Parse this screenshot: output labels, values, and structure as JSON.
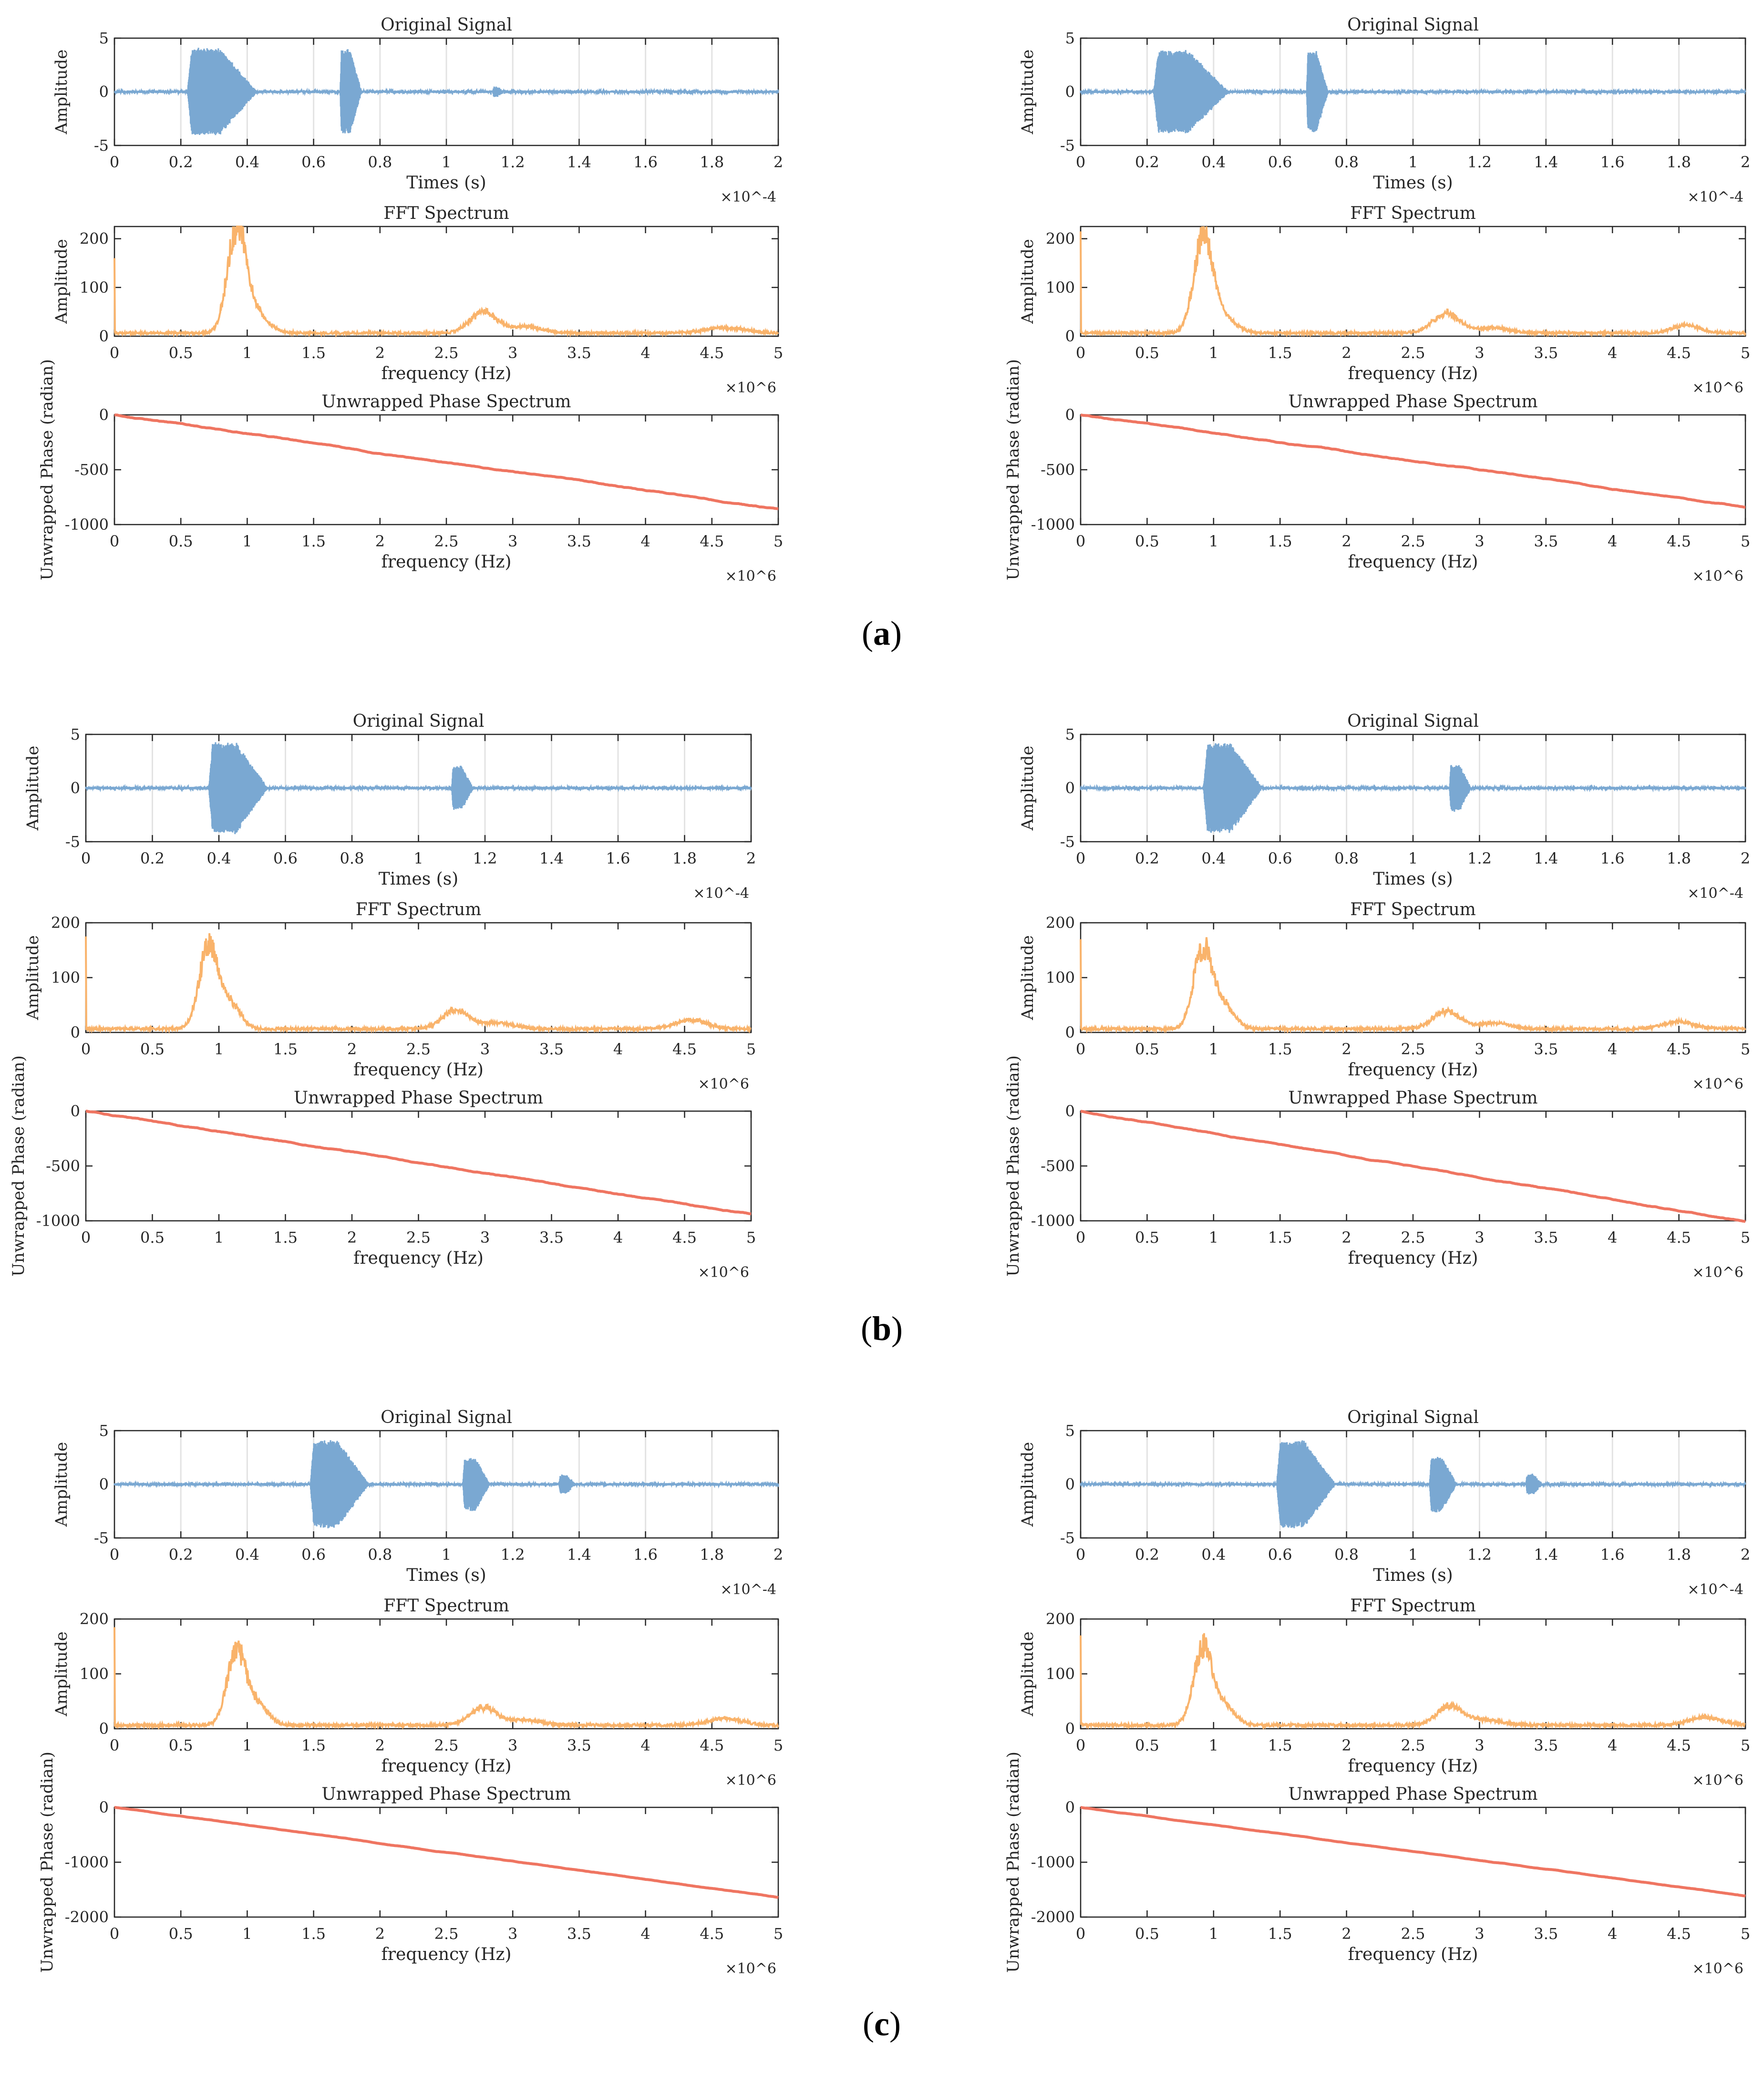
{
  "colors": {
    "signal": "#7aa8d2",
    "fft": "#f9b36b",
    "phase": "#ef7561",
    "axis": "#262626",
    "grid": "#e3e3e3"
  },
  "chart_data": [
    {
      "group": "a",
      "caption": "(a)",
      "column": "left",
      "signal": {
        "type": "line",
        "title": "Original Signal",
        "xlabel": "Times (s)",
        "ylabel": "Amplitude",
        "xlim": [
          0,
          2
        ],
        "ylim": [
          -5,
          5
        ],
        "x_ticks": [
          "0",
          "0.2",
          "0.4",
          "0.6",
          "0.8",
          "1",
          "1.2",
          "1.4",
          "1.6",
          "1.8",
          "2"
        ],
        "y_ticks": [
          "-5",
          "0",
          "5"
        ],
        "x_exponent": "×10^-4",
        "bursts": [
          {
            "t": 0.22,
            "dur": 0.13,
            "amp": 4.0
          },
          {
            "t": 0.68,
            "dur": 0.04,
            "amp": 3.9
          },
          {
            "t": 1.14,
            "dur": 0.02,
            "amp": 0.4
          }
        ],
        "grid": true
      },
      "fft": {
        "type": "line",
        "title": "FFT Spectrum",
        "xlabel": "frequency (Hz)",
        "ylabel": "Amplitude",
        "xlim": [
          0,
          5
        ],
        "ylim": [
          0,
          225
        ],
        "x_ticks": [
          "0",
          "0.5",
          "1",
          "1.5",
          "2",
          "2.5",
          "3",
          "3.5",
          "4",
          "4.5",
          "5"
        ],
        "y_ticks": [
          "0",
          "100",
          "200"
        ],
        "x_exponent": "×10^6",
        "peaks": [
          {
            "f": 0.92,
            "a": 225,
            "w": 0.07
          },
          {
            "f": 1.05,
            "a": 45,
            "w": 0.1
          },
          {
            "f": 2.78,
            "a": 48,
            "w": 0.1
          },
          {
            "f": 3.1,
            "a": 15,
            "w": 0.12
          },
          {
            "f": 4.6,
            "a": 12,
            "w": 0.15
          }
        ],
        "start": 160
      },
      "phase": {
        "type": "line",
        "title": "Unwrapped Phase Spectrum",
        "xlabel": "frequency (Hz)",
        "ylabel": "Unwrapped Phase (radian)",
        "xlim": [
          0,
          5
        ],
        "ylim": [
          -1000,
          0
        ],
        "x_ticks": [
          "0",
          "0.5",
          "1",
          "1.5",
          "2",
          "2.5",
          "3",
          "3.5",
          "4",
          "4.5",
          "5"
        ],
        "y_ticks": [
          "-1000",
          "-500",
          "0"
        ],
        "x_exponent": "×10^6",
        "end": -860
      }
    },
    {
      "group": "a",
      "caption": "(a)",
      "column": "right",
      "signal": {
        "type": "line",
        "title": "Original Signal",
        "xlabel": "Times (s)",
        "ylabel": "Amplitude",
        "xlim": [
          0,
          2
        ],
        "ylim": [
          -5,
          5
        ],
        "x_ticks": [
          "0",
          "0.2",
          "0.4",
          "0.6",
          "0.8",
          "1",
          "1.2",
          "1.4",
          "1.6",
          "1.8",
          "2"
        ],
        "y_ticks": [
          "-5",
          "0",
          "5"
        ],
        "x_exponent": "×10^-4",
        "bursts": [
          {
            "t": 0.22,
            "dur": 0.14,
            "amp": 3.8
          },
          {
            "t": 0.68,
            "dur": 0.04,
            "amp": 3.7
          }
        ],
        "grid": true
      },
      "fft": {
        "type": "line",
        "title": "FFT Spectrum",
        "xlabel": "frequency (Hz)",
        "ylabel": "Amplitude",
        "xlim": [
          0,
          5
        ],
        "ylim": [
          0,
          225
        ],
        "x_ticks": [
          "0",
          "0.5",
          "1",
          "1.5",
          "2",
          "2.5",
          "3",
          "3.5",
          "4",
          "4.5",
          "5"
        ],
        "y_ticks": [
          "0",
          "100",
          "200"
        ],
        "x_exponent": "×10^6",
        "peaks": [
          {
            "f": 0.92,
            "a": 210,
            "w": 0.07
          },
          {
            "f": 1.05,
            "a": 40,
            "w": 0.1
          },
          {
            "f": 2.75,
            "a": 45,
            "w": 0.1
          },
          {
            "f": 3.1,
            "a": 12,
            "w": 0.12
          },
          {
            "f": 4.55,
            "a": 18,
            "w": 0.1
          }
        ],
        "start": 215
      },
      "phase": {
        "type": "line",
        "title": "Unwrapped Phase Spectrum",
        "xlabel": "frequency (Hz)",
        "ylabel": "Unwrapped Phase (radian)",
        "xlim": [
          0,
          5
        ],
        "ylim": [
          -1000,
          0
        ],
        "x_ticks": [
          "0",
          "0.5",
          "1",
          "1.5",
          "2",
          "2.5",
          "3",
          "3.5",
          "4",
          "4.5",
          "5"
        ],
        "y_ticks": [
          "-1000",
          "-500",
          "0"
        ],
        "x_exponent": "×10^6",
        "end": -840
      }
    },
    {
      "group": "b",
      "caption": "(b)",
      "column": "left",
      "signal": {
        "type": "line",
        "title": "Original Signal",
        "xlabel": "Times (s)",
        "ylabel": "Amplitude",
        "xlim": [
          0,
          2
        ],
        "ylim": [
          -5,
          5
        ],
        "x_ticks": [
          "0",
          "0.2",
          "0.4",
          "0.6",
          "0.8",
          "1",
          "1.2",
          "1.4",
          "1.6",
          "1.8",
          "2"
        ],
        "y_ticks": [
          "-5",
          "0",
          "5"
        ],
        "x_exponent": "×10^-4",
        "bursts": [
          {
            "t": 0.37,
            "dur": 0.11,
            "amp": 4.2
          },
          {
            "t": 1.1,
            "dur": 0.04,
            "amp": 2.0
          }
        ],
        "grid": true
      },
      "fft": {
        "type": "line",
        "title": "FFT Spectrum",
        "xlabel": "frequency (Hz)",
        "ylabel": "Amplitude",
        "xlim": [
          0,
          5
        ],
        "ylim": [
          0,
          200
        ],
        "x_ticks": [
          "0",
          "0.5",
          "1",
          "1.5",
          "2",
          "2.5",
          "3",
          "3.5",
          "4",
          "4.5",
          "5"
        ],
        "y_ticks": [
          "0",
          "100",
          "200"
        ],
        "x_exponent": "×10^6",
        "peaks": [
          {
            "f": 0.92,
            "a": 162,
            "w": 0.07
          },
          {
            "f": 1.08,
            "a": 50,
            "w": 0.08
          },
          {
            "f": 2.78,
            "a": 38,
            "w": 0.1
          },
          {
            "f": 3.1,
            "a": 12,
            "w": 0.12
          },
          {
            "f": 4.55,
            "a": 18,
            "w": 0.12
          }
        ],
        "start": 175
      },
      "phase": {
        "type": "line",
        "title": "Unwrapped Phase Spectrum",
        "xlabel": "frequency (Hz)",
        "ylabel": "Unwrapped Phase (radian)",
        "xlim": [
          0,
          5
        ],
        "ylim": [
          -1000,
          0
        ],
        "x_ticks": [
          "0",
          "0.5",
          "1",
          "1.5",
          "2",
          "2.5",
          "3",
          "3.5",
          "4",
          "4.5",
          "5"
        ],
        "y_ticks": [
          "-1000",
          "-500",
          "0"
        ],
        "x_exponent": "×10^6",
        "end": -940
      }
    },
    {
      "group": "b",
      "caption": "(b)",
      "column": "right",
      "signal": {
        "type": "line",
        "title": "Original Signal",
        "xlabel": "Times (s)",
        "ylabel": "Amplitude",
        "xlim": [
          0,
          2
        ],
        "ylim": [
          -5,
          5
        ],
        "x_ticks": [
          "0",
          "0.2",
          "0.4",
          "0.6",
          "0.8",
          "1",
          "1.2",
          "1.4",
          "1.6",
          "1.8",
          "2"
        ],
        "y_ticks": [
          "-5",
          "0",
          "5"
        ],
        "x_exponent": "×10^-4",
        "bursts": [
          {
            "t": 0.37,
            "dur": 0.11,
            "amp": 4.1
          },
          {
            "t": 1.11,
            "dur": 0.04,
            "amp": 2.1
          }
        ],
        "grid": true
      },
      "fft": {
        "type": "line",
        "title": "FFT Spectrum",
        "xlabel": "frequency (Hz)",
        "ylabel": "Amplitude",
        "xlim": [
          0,
          5
        ],
        "ylim": [
          0,
          200
        ],
        "x_ticks": [
          "0",
          "0.5",
          "1",
          "1.5",
          "2",
          "2.5",
          "3",
          "3.5",
          "4",
          "4.5",
          "5"
        ],
        "y_ticks": [
          "0",
          "100",
          "200"
        ],
        "x_exponent": "×10^6",
        "peaks": [
          {
            "f": 0.92,
            "a": 162,
            "w": 0.07
          },
          {
            "f": 1.08,
            "a": 45,
            "w": 0.08
          },
          {
            "f": 2.75,
            "a": 36,
            "w": 0.1
          },
          {
            "f": 3.1,
            "a": 12,
            "w": 0.12
          },
          {
            "f": 4.5,
            "a": 14,
            "w": 0.12
          }
        ],
        "start": 170
      },
      "phase": {
        "type": "line",
        "title": "Unwrapped Phase Spectrum",
        "xlabel": "frequency (Hz)",
        "ylabel": "Unwrapped Phase (radian)",
        "xlim": [
          0,
          5
        ],
        "ylim": [
          -1000,
          0
        ],
        "x_ticks": [
          "0",
          "0.5",
          "1",
          "1.5",
          "2",
          "2.5",
          "3",
          "3.5",
          "4",
          "4.5",
          "5"
        ],
        "y_ticks": [
          "-1000",
          "-500",
          "0"
        ],
        "x_exponent": "×10^6",
        "end": -1010
      }
    },
    {
      "group": "c",
      "caption": "(c)",
      "column": "left",
      "signal": {
        "type": "line",
        "title": "Original Signal",
        "xlabel": "Times (s)",
        "ylabel": "Amplitude",
        "xlim": [
          0,
          2
        ],
        "ylim": [
          -5,
          5
        ],
        "x_ticks": [
          "0",
          "0.2",
          "0.4",
          "0.6",
          "0.8",
          "1",
          "1.2",
          "1.4",
          "1.6",
          "1.8",
          "2"
        ],
        "y_ticks": [
          "-5",
          "0",
          "5"
        ],
        "x_exponent": "×10^-4",
        "bursts": [
          {
            "t": 0.59,
            "dur": 0.11,
            "amp": 4.0
          },
          {
            "t": 1.05,
            "dur": 0.05,
            "amp": 2.4
          },
          {
            "t": 1.34,
            "dur": 0.03,
            "amp": 0.8
          }
        ],
        "grid": true
      },
      "fft": {
        "type": "line",
        "title": "FFT Spectrum",
        "xlabel": "frequency (Hz)",
        "ylabel": "Amplitude",
        "xlim": [
          0,
          5
        ],
        "ylim": [
          0,
          200
        ],
        "x_ticks": [
          "0",
          "0.5",
          "1",
          "1.5",
          "2",
          "2.5",
          "3",
          "3.5",
          "4",
          "4.5",
          "5"
        ],
        "y_ticks": [
          "0",
          "100",
          "200"
        ],
        "x_exponent": "×10^6",
        "peaks": [
          {
            "f": 0.92,
            "a": 150,
            "w": 0.07
          },
          {
            "f": 1.08,
            "a": 40,
            "w": 0.08
          },
          {
            "f": 2.78,
            "a": 36,
            "w": 0.1
          },
          {
            "f": 3.1,
            "a": 10,
            "w": 0.12
          },
          {
            "f": 4.6,
            "a": 14,
            "w": 0.12
          }
        ],
        "start": 185
      },
      "phase": {
        "type": "line",
        "title": "Unwrapped Phase Spectrum",
        "xlabel": "frequency (Hz)",
        "ylabel": "Unwrapped Phase (radian)",
        "xlim": [
          0,
          5
        ],
        "ylim": [
          -2000,
          0
        ],
        "x_ticks": [
          "0",
          "0.5",
          "1",
          "1.5",
          "2",
          "2.5",
          "3",
          "3.5",
          "4",
          "4.5",
          "5"
        ],
        "y_ticks": [
          "-2000",
          "-1000",
          "0"
        ],
        "x_exponent": "×10^6",
        "end": -1640
      }
    },
    {
      "group": "c",
      "caption": "(c)",
      "column": "right",
      "signal": {
        "type": "line",
        "title": "Original Signal",
        "xlabel": "Times (s)",
        "ylabel": "Amplitude",
        "xlim": [
          0,
          2
        ],
        "ylim": [
          -5,
          5
        ],
        "x_ticks": [
          "0",
          "0.2",
          "0.4",
          "0.6",
          "0.8",
          "1",
          "1.2",
          "1.4",
          "1.6",
          "1.8",
          "2"
        ],
        "y_ticks": [
          "-5",
          "0",
          "5"
        ],
        "x_exponent": "×10^-4",
        "bursts": [
          {
            "t": 0.59,
            "dur": 0.11,
            "amp": 4.0
          },
          {
            "t": 1.05,
            "dur": 0.05,
            "amp": 2.5
          },
          {
            "t": 1.34,
            "dur": 0.03,
            "amp": 0.9
          }
        ],
        "grid": true
      },
      "fft": {
        "type": "line",
        "title": "FFT Spectrum",
        "xlabel": "frequency (Hz)",
        "ylabel": "Amplitude",
        "xlim": [
          0,
          5
        ],
        "ylim": [
          0,
          200
        ],
        "x_ticks": [
          "0",
          "0.5",
          "1",
          "1.5",
          "2",
          "2.5",
          "3",
          "3.5",
          "4",
          "4.5",
          "5"
        ],
        "y_ticks": [
          "0",
          "100",
          "200"
        ],
        "x_exponent": "×10^6",
        "peaks": [
          {
            "f": 0.92,
            "a": 155,
            "w": 0.07
          },
          {
            "f": 1.08,
            "a": 38,
            "w": 0.08
          },
          {
            "f": 2.78,
            "a": 38,
            "w": 0.1
          },
          {
            "f": 3.05,
            "a": 10,
            "w": 0.12
          },
          {
            "f": 4.7,
            "a": 16,
            "w": 0.12
          }
        ],
        "start": 170
      },
      "phase": {
        "type": "line",
        "title": "Unwrapped Phase Spectrum",
        "xlabel": "frequency (Hz)",
        "ylabel": "Unwrapped Phase (radian)",
        "xlim": [
          0,
          5
        ],
        "ylim": [
          -2000,
          0
        ],
        "x_ticks": [
          "0",
          "0.5",
          "1",
          "1.5",
          "2",
          "2.5",
          "3",
          "3.5",
          "4",
          "4.5",
          "5"
        ],
        "y_ticks": [
          "-2000",
          "-1000",
          "0"
        ],
        "x_exponent": "×10^6",
        "end": -1610
      }
    }
  ],
  "captions": [
    {
      "open": "(",
      "letter": "a",
      "close": ")"
    },
    {
      "open": "(",
      "letter": "b",
      "close": ")"
    },
    {
      "open": "(",
      "letter": "c",
      "close": ")"
    }
  ]
}
